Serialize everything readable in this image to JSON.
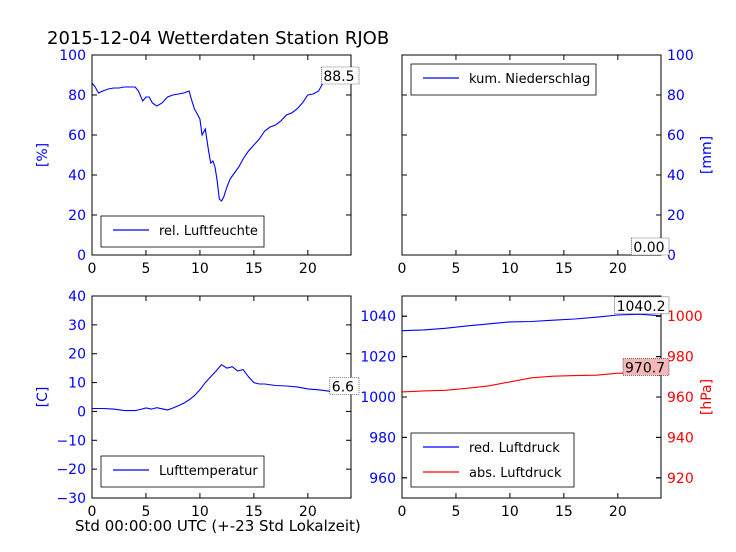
{
  "title": "2015-12-04 Wetterdaten Station RJOB",
  "xlabel": "Std 00:00:00 UTC (+-23 Std Lokalzeit)",
  "colors": {
    "blue": "#0000ff",
    "red": "#ff0000",
    "black": "#000000"
  },
  "chart_data": [
    {
      "type": "line",
      "panel": "top-left",
      "xlim": [
        0,
        24
      ],
      "ylim": [
        0,
        100
      ],
      "xticks": [
        0,
        5,
        10,
        15,
        20
      ],
      "yticks": [
        0,
        20,
        40,
        60,
        80,
        100
      ],
      "ylabel": "[%]",
      "yaxis_side": "left",
      "ytick_color": "#0000ff",
      "legend_position": "lower-left",
      "annotation": "88.5",
      "series": [
        {
          "name": "rel. Luftfeuchte",
          "color": "#0000ff",
          "x": [
            0,
            0.3,
            0.6,
            1,
            1.5,
            2,
            2.5,
            3,
            3.5,
            4,
            4.3,
            4.7,
            5,
            5.3,
            5.6,
            6,
            6.5,
            7,
            7.5,
            8,
            8.5,
            9,
            9.2,
            9.5,
            9.8,
            10,
            10.2,
            10.5,
            10.8,
            11,
            11.2,
            11.4,
            11.6,
            11.8,
            12,
            12.2,
            12.5,
            12.8,
            13.2,
            13.6,
            14,
            14.5,
            15,
            15.5,
            16,
            16.5,
            17,
            17.5,
            18,
            18.5,
            19,
            19.5,
            20,
            20.5,
            21,
            21.5,
            22,
            22.5,
            23,
            24
          ],
          "y": [
            86,
            84,
            81,
            82,
            83,
            83.5,
            83.5,
            84,
            84,
            84,
            82,
            77,
            79,
            79,
            76,
            74.5,
            76,
            79,
            80,
            80.5,
            81,
            82,
            78,
            73,
            70,
            68,
            60,
            63,
            52,
            46,
            47,
            44,
            37,
            28,
            27,
            29,
            34,
            38,
            41,
            44,
            48,
            52,
            55,
            58,
            62,
            64,
            65,
            67,
            70,
            71,
            73,
            76,
            80,
            80.5,
            82,
            87,
            88.5,
            88.5,
            88.5,
            88.5
          ]
        }
      ]
    },
    {
      "type": "line",
      "panel": "top-right",
      "xlim": [
        0,
        24
      ],
      "ylim": [
        0,
        100
      ],
      "xticks": [
        0,
        5,
        10,
        15,
        20
      ],
      "yticks": [
        0,
        20,
        40,
        60,
        80,
        100
      ],
      "ylabel": "[mm]",
      "yaxis_side": "right",
      "ytick_color": "#0000ff",
      "legend_position": "upper-left",
      "annotation": "0.00",
      "series": [
        {
          "name": "kum. Niederschlag",
          "color": "#0000ff",
          "x": [
            0,
            24
          ],
          "y": [
            0,
            0
          ]
        }
      ]
    },
    {
      "type": "line",
      "panel": "bottom-left",
      "xlim": [
        0,
        24
      ],
      "ylim": [
        -30,
        40
      ],
      "xticks": [
        0,
        5,
        10,
        15,
        20
      ],
      "yticks": [
        -30,
        -20,
        -10,
        0,
        10,
        20,
        30,
        40
      ],
      "ylabel": "[C]",
      "yaxis_side": "left",
      "ytick_color": "#0000ff",
      "legend_position": "lower-left",
      "annotation": "6.6",
      "series": [
        {
          "name": "Lufttemperatur",
          "color": "#0000ff",
          "x": [
            0,
            1,
            2,
            3,
            4,
            4.5,
            5,
            5.5,
            6,
            6.5,
            7,
            7.5,
            8,
            8.5,
            9,
            9.5,
            10,
            10.5,
            11,
            11.5,
            12,
            12.5,
            13,
            13.5,
            14,
            14.5,
            15,
            15.5,
            16,
            17,
            18,
            19,
            20,
            21,
            22,
            23,
            24
          ],
          "y": [
            1,
            1,
            0.8,
            0.3,
            0.3,
            0.7,
            1.2,
            0.8,
            1.3,
            0.9,
            0.5,
            1.2,
            2,
            2.8,
            4,
            5.5,
            7.5,
            10,
            12,
            14,
            16.2,
            15,
            15.5,
            14,
            14.5,
            12,
            10,
            9.5,
            9.5,
            9,
            8.8,
            8.5,
            7.8,
            7.5,
            7,
            6.8,
            6.6
          ]
        }
      ]
    },
    {
      "type": "line",
      "panel": "bottom-right",
      "xlim": [
        0,
        24
      ],
      "xticks": [
        0,
        5,
        10,
        15,
        20
      ],
      "ylim_left": [
        950,
        1050
      ],
      "yticks_left": [
        960,
        980,
        1000,
        1020,
        1040
      ],
      "ylim_right": [
        910,
        1010
      ],
      "yticks_right": [
        920,
        940,
        960,
        980,
        1000
      ],
      "ylabel": "[hPa]",
      "ylabel_side": "right",
      "legend_position": "lower-left",
      "annotations": [
        "1040.2",
        "970.7"
      ],
      "series": [
        {
          "name": "red. Luftdruck",
          "color": "#0000ff",
          "axis": "left",
          "x": [
            0,
            2,
            4,
            6,
            8,
            10,
            12,
            14,
            16,
            18,
            20,
            22,
            24
          ],
          "y": [
            1032.8,
            1033.2,
            1034,
            1035.2,
            1036.2,
            1037.2,
            1037.4,
            1038,
            1038.6,
            1039.5,
            1040.6,
            1041,
            1040.2
          ]
        },
        {
          "name": "abs. Luftdruck",
          "color": "#ff0000",
          "axis": "right",
          "x": [
            0,
            2,
            4,
            5,
            6,
            8,
            10,
            12,
            14,
            16,
            18,
            20,
            22,
            24
          ],
          "y": [
            962.5,
            963,
            963.3,
            963.8,
            964.3,
            965.5,
            967.5,
            969.5,
            970.3,
            970.6,
            970.8,
            971.8,
            971.8,
            970.7
          ]
        }
      ]
    }
  ]
}
